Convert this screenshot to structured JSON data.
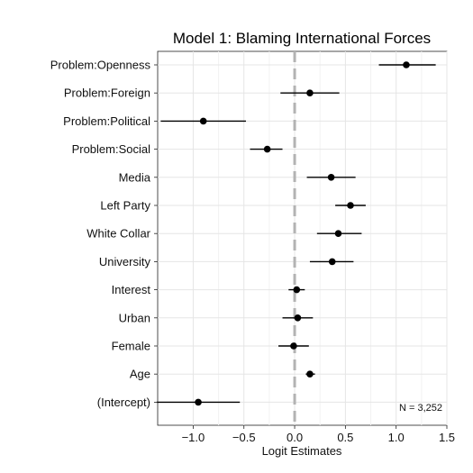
{
  "chart_data": {
    "type": "dot-and-whisker",
    "title": "Model 1: Blaming International Forces",
    "xlabel": "Logit Estimates",
    "ylabel": "",
    "xlim": [
      -1.35,
      1.5
    ],
    "xticks": [
      -1.0,
      -0.5,
      0.0,
      0.5,
      1.0,
      1.5
    ],
    "xtick_labels": [
      "−1.0",
      "−0.5",
      "0.0",
      "0.5",
      "1.0",
      "1.5"
    ],
    "reference_line": 0,
    "grid": true,
    "annotation": "N = 3,252",
    "colors": {
      "point": "#000000",
      "interval": "#000000",
      "reference_line": "#b3b3b3",
      "grid": "#e5e5e5"
    },
    "estimates": [
      {
        "term": "Problem:Openness",
        "estimate": 1.1,
        "lower": 0.83,
        "upper": 1.39
      },
      {
        "term": "Problem:Foreign",
        "estimate": 0.15,
        "lower": -0.14,
        "upper": 0.44
      },
      {
        "term": "Problem:Political",
        "estimate": -0.9,
        "lower": -1.32,
        "upper": -0.48
      },
      {
        "term": "Problem:Social",
        "estimate": -0.27,
        "lower": -0.44,
        "upper": -0.12
      },
      {
        "term": "Media",
        "estimate": 0.36,
        "lower": 0.12,
        "upper": 0.6
      },
      {
        "term": "Left Party",
        "estimate": 0.55,
        "lower": 0.4,
        "upper": 0.7
      },
      {
        "term": "White Collar",
        "estimate": 0.43,
        "lower": 0.22,
        "upper": 0.66
      },
      {
        "term": "University",
        "estimate": 0.37,
        "lower": 0.15,
        "upper": 0.58
      },
      {
        "term": "Interest",
        "estimate": 0.02,
        "lower": -0.06,
        "upper": 0.1
      },
      {
        "term": "Urban",
        "estimate": 0.03,
        "lower": -0.12,
        "upper": 0.18
      },
      {
        "term": "Female",
        "estimate": -0.01,
        "lower": -0.16,
        "upper": 0.14
      },
      {
        "term": "Age",
        "estimate": 0.15,
        "lower": 0.11,
        "upper": 0.2
      },
      {
        "term": "(Intercept)",
        "estimate": -0.95,
        "lower": -1.36,
        "upper": -0.54
      }
    ]
  }
}
